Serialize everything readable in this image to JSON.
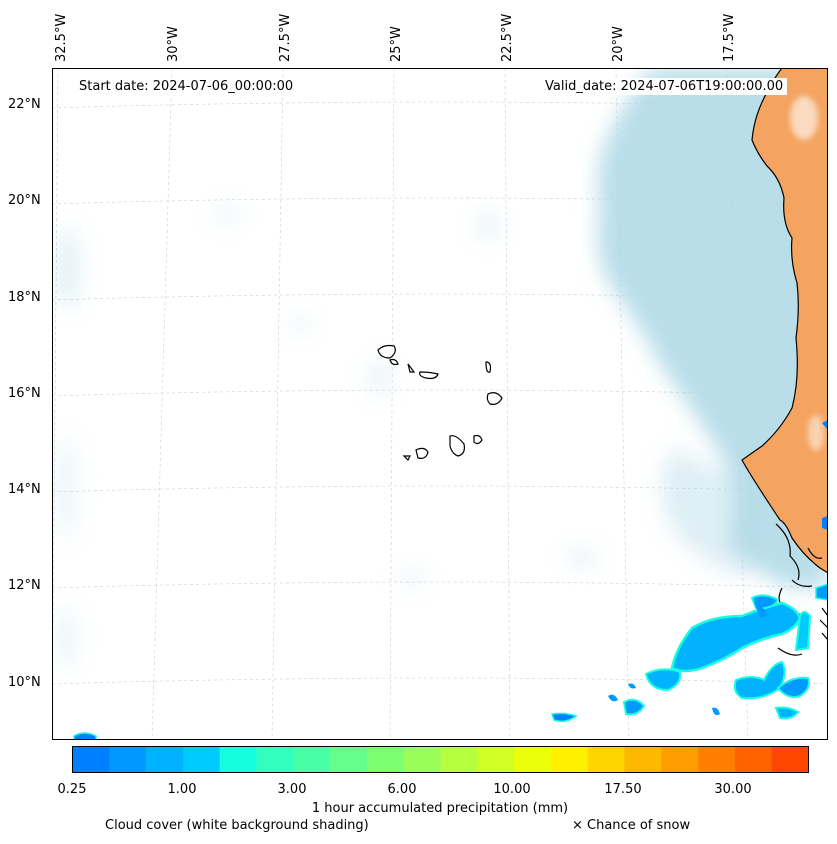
{
  "map": {
    "start_date_label": "Start date: 2024-07-06_00:00:00",
    "valid_date_label": "Valid_date: 2024-07-06T19:00:00.00",
    "longitude_labels": [
      "32.5°W",
      "30°W",
      "27.5°W",
      "25°W",
      "22.5°W",
      "20°W",
      "17.5°W"
    ],
    "latitude_labels": [
      "22°N",
      "20°N",
      "18°N",
      "16°N",
      "14°N",
      "12°N",
      "10°N"
    ]
  },
  "colorbar": {
    "tick_labels": [
      "0.25",
      "1.00",
      "3.00",
      "6.00",
      "10.00",
      "17.50",
      "30.00"
    ],
    "title": "1 hour accumulated precipitation (mm)",
    "colors": [
      "#0080ff",
      "#0099ff",
      "#00b2ff",
      "#00cbff",
      "#16ffdc",
      "#32ffbe",
      "#48ffa8",
      "#62ff8c",
      "#7dff72",
      "#99ff58",
      "#b5ff3e",
      "#cfff24",
      "#ecff0a",
      "#fff000",
      "#ffd400",
      "#ffb800",
      "#ff9c00",
      "#ff7f00",
      "#ff6300",
      "#ff4600"
    ]
  },
  "legend": {
    "cloud_cover": "Cloud cover (white background shading)",
    "snow": "× Chance of snow"
  },
  "style": {
    "land_color": "#f4a460",
    "cloud_color": "#add8e6",
    "coast_color": "#000000"
  }
}
